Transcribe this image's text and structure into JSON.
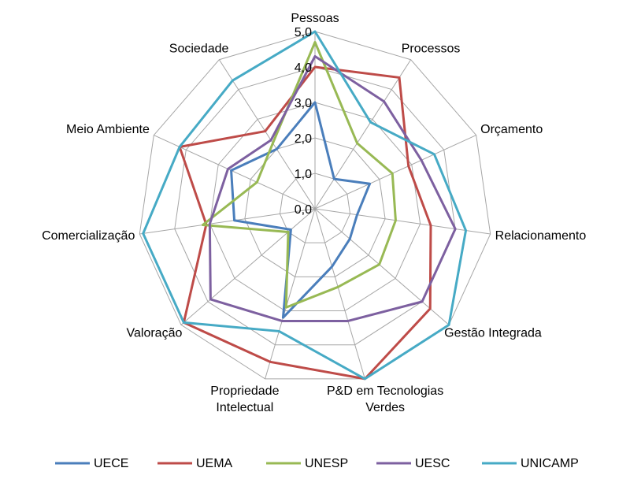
{
  "chart_data": {
    "type": "radar",
    "categories": [
      "Pessoas",
      "Processos",
      "Orçamento",
      "Relacionamento",
      "Gestão Integrada",
      "P&D em Tecnologias Verdes",
      "Propriedade Intelectual",
      "Valoração",
      "Comercialização",
      "Meio Ambiente",
      "Sociedade"
    ],
    "series": [
      {
        "name": "UECE",
        "color": "#4a7ebb",
        "values": [
          3.0,
          1.0,
          1.7,
          1.2,
          1.3,
          1.7,
          3.2,
          0.9,
          2.3,
          2.6,
          2.0
        ]
      },
      {
        "name": "UEMA",
        "color": "#be4b48",
        "values": [
          4.0,
          4.4,
          2.9,
          3.3,
          4.3,
          5.0,
          4.5,
          4.9,
          3.1,
          4.2,
          2.6
        ]
      },
      {
        "name": "UNESP",
        "color": "#98b954",
        "values": [
          4.7,
          2.2,
          2.4,
          2.3,
          2.4,
          2.3,
          2.9,
          1.0,
          3.2,
          1.8,
          2.2
        ]
      },
      {
        "name": "UESC",
        "color": "#7d60a0",
        "values": [
          4.3,
          3.6,
          3.3,
          4.0,
          4.0,
          3.3,
          3.3,
          3.9,
          3.0,
          2.7,
          2.3
        ]
      },
      {
        "name": "UNICAMP",
        "color": "#46aac5",
        "values": [
          5.0,
          2.9,
          3.7,
          4.3,
          5.0,
          5.0,
          3.6,
          4.9,
          4.9,
          4.2,
          4.3
        ]
      }
    ],
    "ylim": [
      0,
      5
    ],
    "yticks": [
      {
        "value": 0,
        "label": "0,0"
      },
      {
        "value": 1,
        "label": "1,0"
      },
      {
        "value": 2,
        "label": "2,0"
      },
      {
        "value": 3,
        "label": "3,0"
      },
      {
        "value": 4,
        "label": "4,0"
      },
      {
        "value": 5,
        "label": "5,0"
      }
    ],
    "grid": true,
    "legend": "bottom"
  }
}
